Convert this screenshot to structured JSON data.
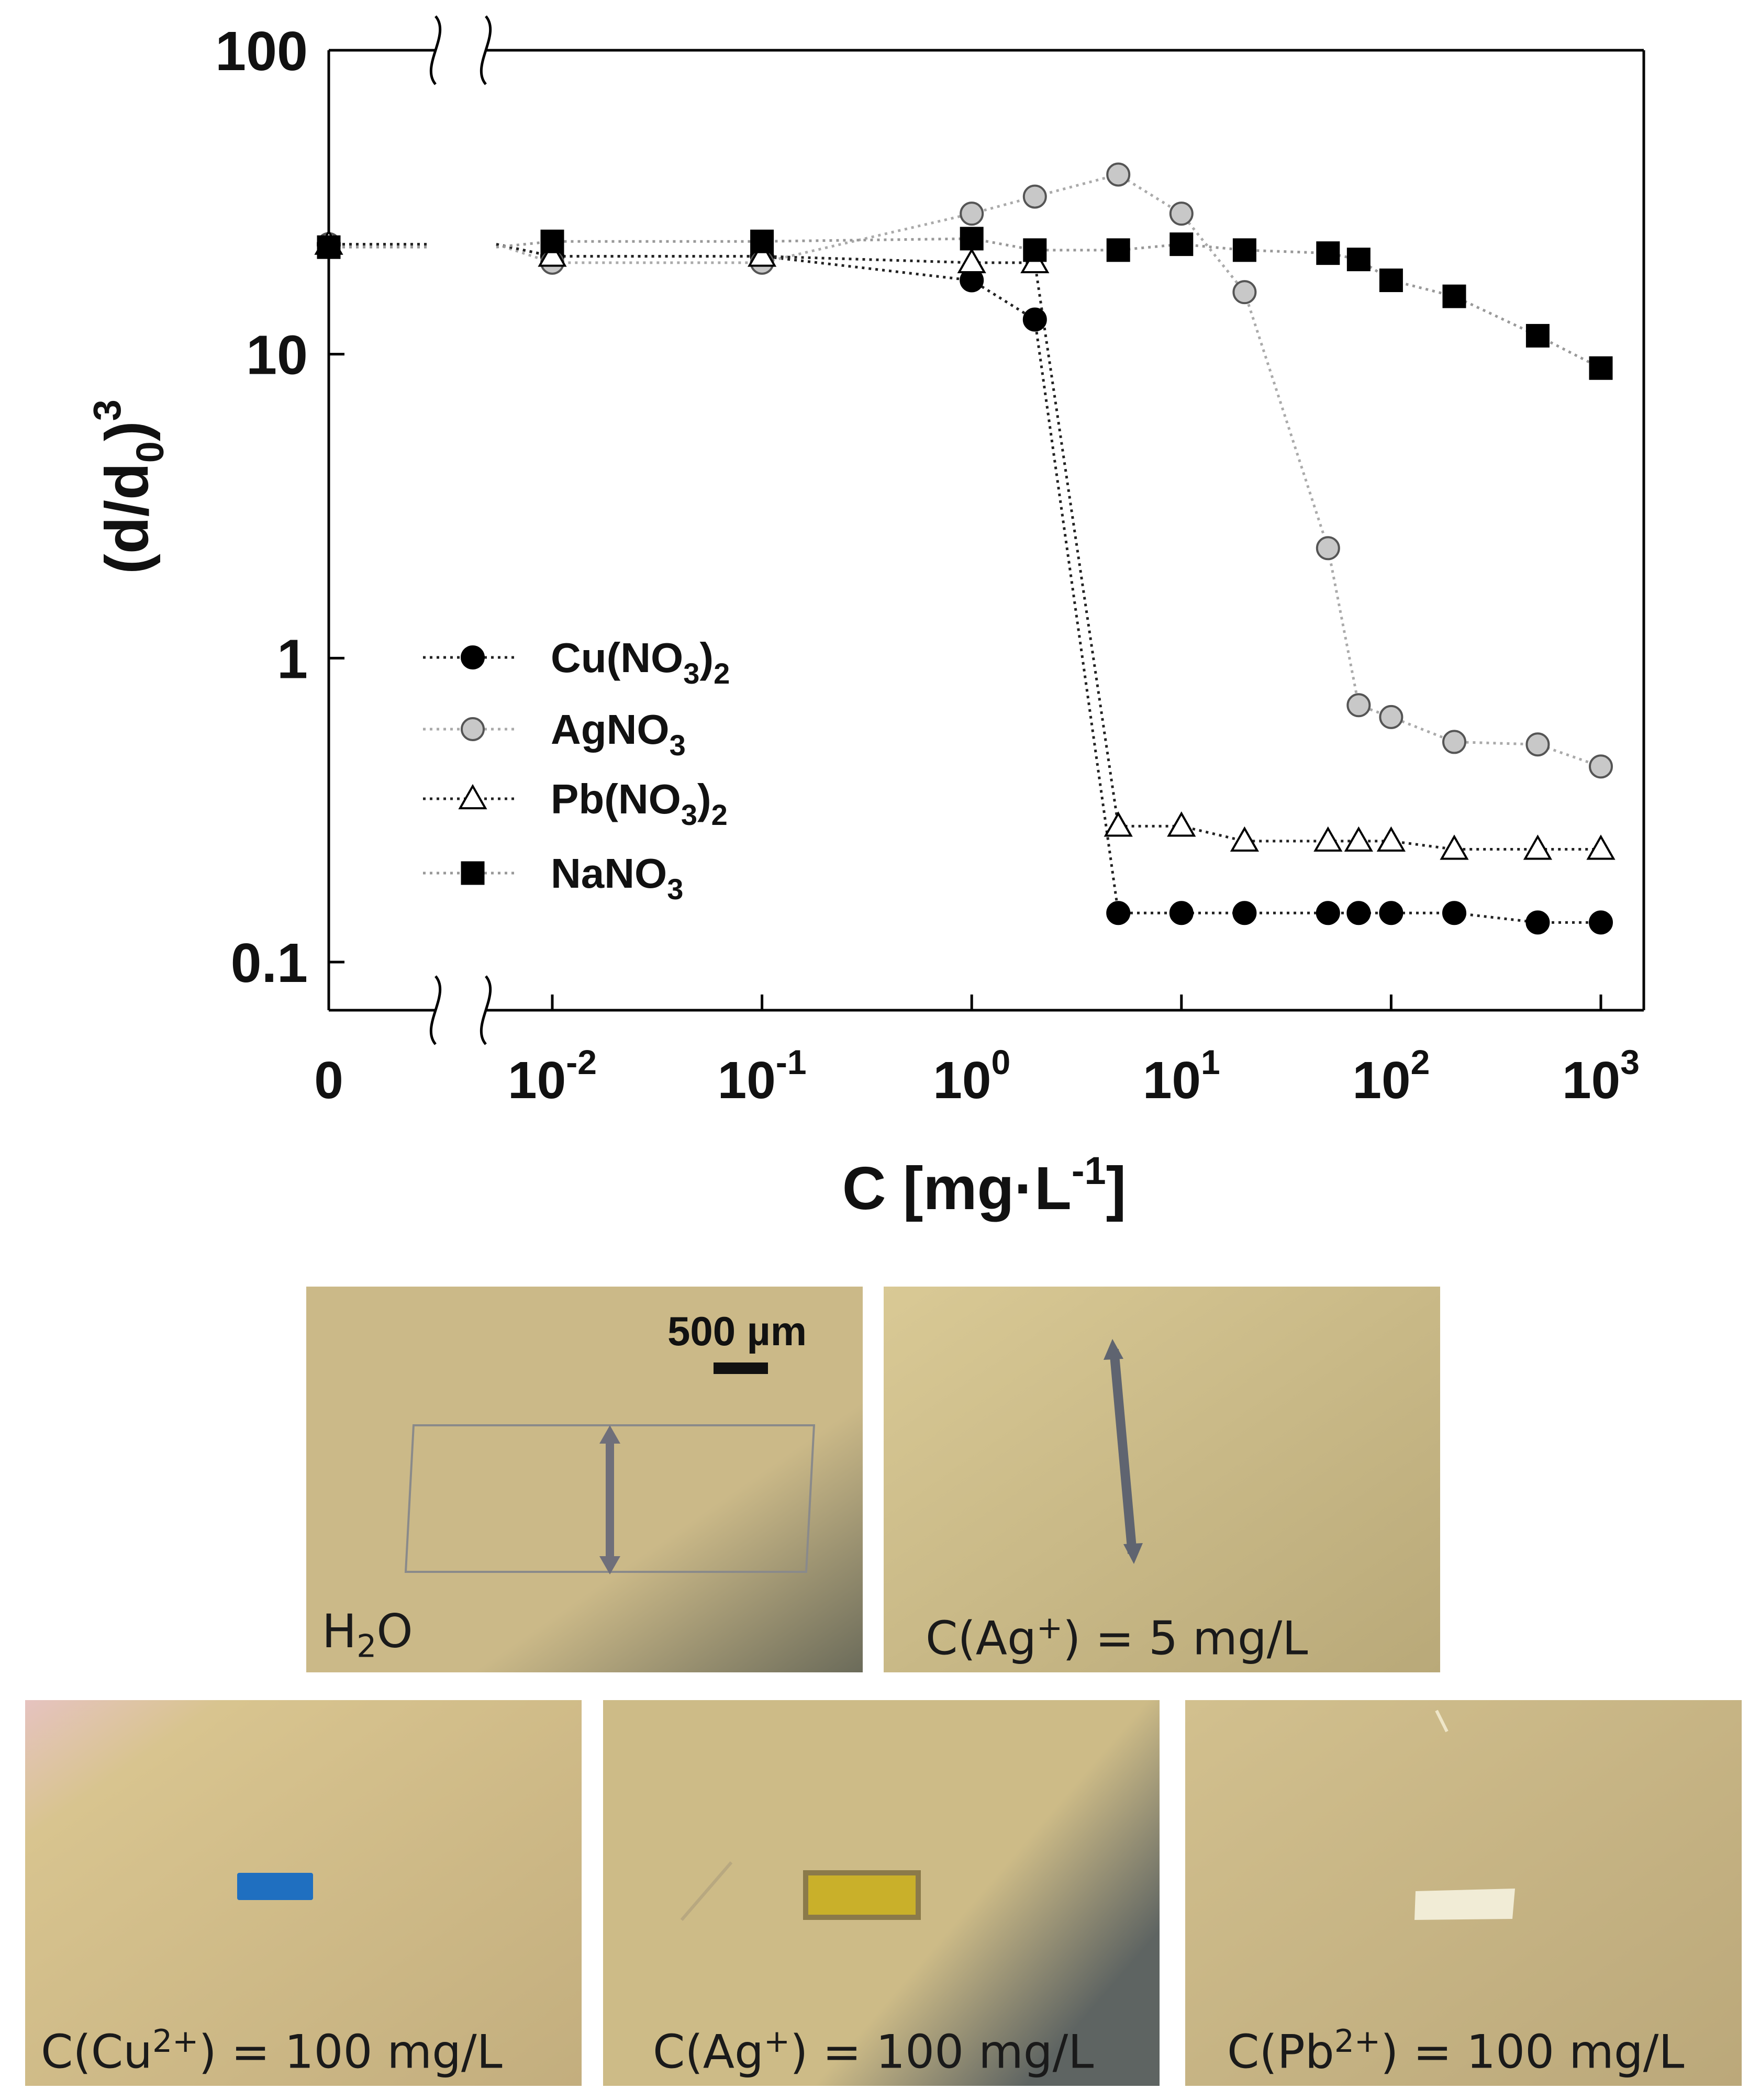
{
  "chart_data": {
    "type": "scatter",
    "xlabel_main": "C [mg·L",
    "xlabel_sup": "-1",
    "xlabel_end": "]",
    "ylabel_main": "(d/d",
    "ylabel_sub": "0",
    "ylabel_close": ")",
    "ylabel_sup": "3",
    "yscale": "log",
    "xscale": "log with broken axis at 0",
    "ylim": [
      0.07,
      100
    ],
    "xlim": [
      0,
      1000
    ],
    "yticks": [
      {
        "value": 0.1,
        "label": "0.1"
      },
      {
        "value": 1,
        "label": "1"
      },
      {
        "value": 10,
        "label": "10"
      },
      {
        "value": 100,
        "label": "100"
      }
    ],
    "xticks": [
      {
        "value": 0,
        "base": "0",
        "exp": ""
      },
      {
        "value": 0.01,
        "base": "10",
        "exp": "-2"
      },
      {
        "value": 0.1,
        "base": "10",
        "exp": "-1"
      },
      {
        "value": 1,
        "base": "10",
        "exp": "0"
      },
      {
        "value": 10,
        "base": "10",
        "exp": "1"
      },
      {
        "value": 100,
        "base": "10",
        "exp": "2"
      },
      {
        "value": 1000,
        "base": "10",
        "exp": "3"
      }
    ],
    "grid": false,
    "legend_position": "lower-left",
    "series": [
      {
        "label_main": "Cu(NO",
        "label_sub": "3",
        "label_end": ")",
        "label_sub2": "2",
        "marker": "circle",
        "fill": "#000000",
        "stroke": "#000000",
        "line": "#222222",
        "x": [
          0,
          0.01,
          0.1,
          1,
          2,
          5,
          10,
          20,
          50,
          70,
          100,
          200,
          500,
          1000
        ],
        "y": [
          23,
          21,
          21,
          17.5,
          13,
          0.145,
          0.145,
          0.145,
          0.145,
          0.145,
          0.145,
          0.145,
          0.135,
          0.135
        ]
      },
      {
        "label_main": "AgNO",
        "label_sub": "3",
        "label_end": "",
        "label_sub2": "",
        "marker": "circle",
        "fill": "#c8c8c8",
        "stroke": "#555555",
        "line": "#aaaaaa",
        "x": [
          0,
          0.01,
          0.1,
          1,
          2,
          5,
          10,
          20,
          50,
          70,
          100,
          200,
          500,
          1000
        ],
        "y": [
          23,
          20,
          20,
          29,
          33,
          39,
          29,
          16,
          2.3,
          0.7,
          0.64,
          0.53,
          0.52,
          0.44
        ]
      },
      {
        "label_main": "Pb(NO",
        "label_sub": "3",
        "label_end": ")",
        "label_sub2": "2",
        "marker": "triangle",
        "fill": "#ffffff",
        "stroke": "#000000",
        "line": "#222222",
        "x": [
          0,
          0.01,
          0.1,
          1,
          2,
          5,
          10,
          20,
          50,
          70,
          100,
          200,
          500,
          1000
        ],
        "y": [
          23,
          21,
          21,
          20,
          20,
          0.28,
          0.28,
          0.25,
          0.25,
          0.25,
          0.25,
          0.235,
          0.235,
          0.235
        ]
      },
      {
        "label_main": "NaNO",
        "label_sub": "3",
        "label_end": "",
        "label_sub2": "",
        "marker": "square",
        "fill": "#000000",
        "stroke": "#000000",
        "line": "#999999",
        "x": [
          0,
          0.01,
          0.1,
          1,
          2,
          5,
          10,
          20,
          50,
          70,
          100,
          200,
          500,
          1000
        ],
        "y": [
          22.5,
          23.5,
          23.5,
          24,
          22,
          22,
          23,
          22,
          21.5,
          20.5,
          17.5,
          15.5,
          11.5,
          9
        ]
      }
    ]
  },
  "photos": {
    "scale_bar": "500 µm",
    "panels": [
      {
        "id": "h2o",
        "caption_main": "H",
        "caption_sub": "2",
        "caption_end": "O",
        "bg_start": "#cbb988",
        "bg_end": "#6b6b5a"
      },
      {
        "id": "ag5",
        "caption_main": "C(Ag",
        "caption_sup": "+",
        "caption_end": ") = 5 mg/L",
        "bg_start": "#d9c995",
        "bg_end": "#b9a979"
      },
      {
        "id": "cu100",
        "caption_main": "C(Cu",
        "caption_sup": "2+",
        "caption_end": ") = 100 mg/L",
        "bg_start": "#d8c48f",
        "bg_end": "#c3ae7e",
        "sample_color": "#1f6fc0"
      },
      {
        "id": "ag100",
        "caption_main": "C(Ag",
        "caption_sup": "+",
        "caption_end": ") = 100 mg/L",
        "bg_start": "#cdbb87",
        "bg_end": "#5e6462",
        "sample_color": "#c9b02a"
      },
      {
        "id": "pb100",
        "caption_main": "C(Pb",
        "caption_sup": "2+",
        "caption_end": ") = 100 mg/L",
        "bg_start": "#d2c08e",
        "bg_end": "#bba87a",
        "sample_color": "#f1ecd6"
      }
    ]
  }
}
